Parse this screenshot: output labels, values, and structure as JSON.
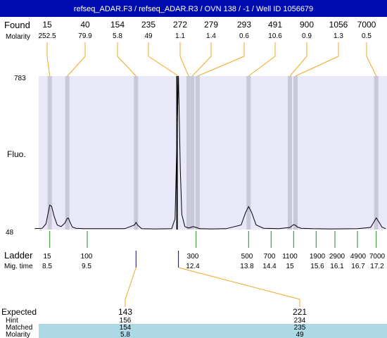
{
  "header": {
    "title": "refseq_ADAR.F3 / refseq_ADAR.R3 / OVN 138 / -1 / Well ID 1056679",
    "bg_color": "#000cb0",
    "text_color": "#ffffff"
  },
  "found": {
    "label": "Found",
    "molarity_label": "Molarity",
    "sizes": [
      "15",
      "40",
      "154",
      "235",
      "272",
      "279",
      "293",
      "491",
      "900",
      "1056",
      "7000"
    ],
    "molarities": [
      "252.5",
      "79.9",
      "5.8",
      "49",
      "1.1",
      "1.4",
      "0.6",
      "10.6",
      "0.9",
      "1.3",
      "0.5"
    ],
    "leader_color": "#f5a623"
  },
  "axis": {
    "ylabel": "Fluo.",
    "ymax_label": "783",
    "ymin_label": "48",
    "plot_bg": "#e8e8f8",
    "band_color": "#c8c8d8"
  },
  "ladder": {
    "label": "Ladder",
    "migtime_label": "Mig. time",
    "sizes": [
      "15",
      "100",
      "300",
      "500",
      "700",
      "1100",
      "1900",
      "2900",
      "4900",
      "7000"
    ],
    "mig_times": [
      "8.5",
      "9.5",
      "12.4",
      "13.8",
      "14.4",
      "15",
      "15.6",
      "16.1",
      "16.7",
      "17.2"
    ],
    "tick_color": "#228b22"
  },
  "expected": {
    "label": "Expected",
    "hint_label": "Hint",
    "matched_label": "Matched",
    "molarity_label": "Molarity",
    "columns": [
      {
        "expected": "143",
        "hint": "156",
        "matched": "154",
        "molarity": "5.8"
      },
      {
        "expected": "221",
        "hint": "234",
        "matched": "235",
        "molarity": "49"
      }
    ],
    "highlight_color": "#add8e6"
  },
  "chart_data": {
    "type": "line",
    "ylabel": "Fluo.",
    "ylim": [
      48,
      783
    ],
    "x_unit": "migration time",
    "xlim": [
      8.1,
      17.45
    ],
    "series": [
      {
        "x": [
          8.1,
          8.3,
          8.4,
          8.45,
          8.5,
          8.55,
          8.62,
          8.7,
          8.8,
          8.9,
          8.97,
          9.0,
          9.03,
          9.1,
          9.2,
          9.4,
          10.0,
          10.5,
          10.76,
          10.8,
          10.84,
          10.95,
          11.3,
          11.75,
          11.84,
          11.88,
          11.93,
          11.98,
          12.02,
          12.1,
          12.2,
          12.25,
          12.32,
          12.4,
          12.5,
          12.8,
          13.2,
          13.6,
          13.72,
          13.8,
          13.88,
          14.0,
          14.2,
          14.6,
          14.9,
          15.0,
          15.05,
          15.1,
          15.2,
          15.5,
          16.0,
          16.7,
          17.05,
          17.15,
          17.2,
          17.27,
          17.35,
          17.45
        ],
        "y": [
          52,
          54,
          75,
          120,
          165,
          160,
          110,
          70,
          62,
          78,
          102,
          103,
          88,
          60,
          54,
          52,
          52,
          52,
          70,
          82,
          70,
          52,
          51,
          52,
          100,
          400,
          783,
          330,
          120,
          62,
          55,
          58,
          62,
          58,
          52,
          51,
          52,
          70,
          130,
          158,
          130,
          70,
          54,
          52,
          58,
          72,
          68,
          60,
          54,
          52,
          51,
          52,
          58,
          88,
          104,
          85,
          60,
          52
        ]
      }
    ]
  }
}
